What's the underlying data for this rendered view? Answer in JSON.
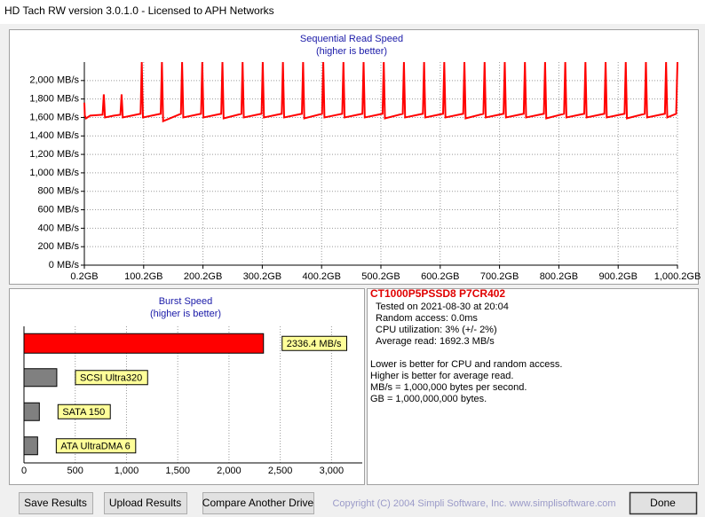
{
  "window_title": "HD Tach RW version 3.0.1.0 - Licensed to APH Networks",
  "chart_data": [
    {
      "type": "line",
      "title": "Sequential Read Speed",
      "subtitle": "(higher is better)",
      "x": [
        0.2,
        1,
        3,
        10,
        31,
        33,
        35,
        50,
        61,
        63,
        65,
        80,
        95,
        97,
        99,
        129,
        131,
        133,
        163,
        165,
        167,
        197,
        199,
        201,
        231,
        233,
        235,
        265,
        267,
        269,
        299,
        301,
        303,
        333,
        335,
        337,
        367,
        369,
        371,
        401,
        403,
        405,
        435,
        437,
        439,
        469,
        471,
        473,
        503,
        505,
        507,
        537,
        539,
        541,
        571,
        573,
        575,
        605,
        607,
        609,
        639,
        641,
        643,
        673,
        675,
        677,
        707,
        709,
        711,
        741,
        743,
        745,
        775,
        777,
        779,
        809,
        811,
        813,
        843,
        845,
        847,
        877,
        879,
        881,
        911,
        913,
        915,
        945,
        947,
        949,
        979,
        981,
        983,
        998,
        1000.2
      ],
      "series": [
        {
          "color": "#ff0000",
          "values": [
            1760,
            1620,
            1590,
            1620,
            1630,
            1850,
            1600,
            1620,
            1630,
            1850,
            1600,
            1620,
            1640,
            2200,
            1600,
            1640,
            2200,
            1560,
            1640,
            2200,
            1600,
            1640,
            2200,
            1600,
            1640,
            2200,
            1590,
            1640,
            2200,
            1600,
            1640,
            2200,
            1600,
            1640,
            2200,
            1600,
            1640,
            2200,
            1590,
            1640,
            2200,
            1600,
            1640,
            2200,
            1600,
            1640,
            2200,
            1600,
            1640,
            2200,
            1590,
            1640,
            2200,
            1600,
            1640,
            2200,
            1600,
            1640,
            2200,
            1600,
            1640,
            2200,
            1590,
            1640,
            2200,
            1600,
            1640,
            2200,
            1600,
            1640,
            2200,
            1600,
            1640,
            2200,
            1590,
            1640,
            2200,
            1600,
            1640,
            2200,
            1600,
            1640,
            2200,
            1600,
            1640,
            2200,
            1590,
            1640,
            2200,
            1600,
            1640,
            2200,
            1600,
            1640,
            2200
          ]
        }
      ],
      "xlim": [
        0.2,
        1000.2
      ],
      "xticks": [
        {
          "value": 0.2,
          "label": "0.2GB"
        },
        {
          "value": 100.2,
          "label": "100.2GB"
        },
        {
          "value": 200.2,
          "label": "200.2GB"
        },
        {
          "value": 300.2,
          "label": "300.2GB"
        },
        {
          "value": 400.2,
          "label": "400.2GB"
        },
        {
          "value": 500.2,
          "label": "500.2GB"
        },
        {
          "value": 600.2,
          "label": "600.2GB"
        },
        {
          "value": 700.2,
          "label": "700.2GB"
        },
        {
          "value": 800.2,
          "label": "800.2GB"
        },
        {
          "value": 900.2,
          "label": "900.2GB"
        },
        {
          "value": 1000.2,
          "label": "1,000.2GB"
        }
      ],
      "ylim": [
        0,
        2200
      ],
      "yticks": [
        {
          "value": 0,
          "label": "0 MB/s"
        },
        {
          "value": 200,
          "label": "200 MB/s"
        },
        {
          "value": 400,
          "label": "400 MB/s"
        },
        {
          "value": 600,
          "label": "600 MB/s"
        },
        {
          "value": 800,
          "label": "800 MB/s"
        },
        {
          "value": 1000,
          "label": "1,000 MB/s"
        },
        {
          "value": 1200,
          "label": "1,200 MB/s"
        },
        {
          "value": 1400,
          "label": "1,400 MB/s"
        },
        {
          "value": 1600,
          "label": "1,600 MB/s"
        },
        {
          "value": 1800,
          "label": "1,800 MB/s"
        },
        {
          "value": 2000,
          "label": "2,000 MB/s"
        }
      ],
      "grid": true
    },
    {
      "type": "hbar",
      "title": "Burst Speed",
      "subtitle": "(higher is better)",
      "categories": [
        null,
        "SCSI Ultra320",
        "SATA 150",
        "ATA UltraDMA 6"
      ],
      "values": [
        2336.4,
        320,
        150,
        133
      ],
      "value_labels": [
        "2336.4 MB/s",
        null,
        null,
        null
      ],
      "colors": [
        "#ff0000",
        "#808080",
        "#808080",
        "#808080"
      ],
      "xlim": [
        0,
        3300
      ],
      "xticks": [
        0,
        500,
        {
          "value": 1000,
          "label": "1,000"
        },
        {
          "value": 1500,
          "label": "1,500"
        },
        {
          "value": 2000,
          "label": "2,000"
        },
        {
          "value": 2500,
          "label": "2,500"
        },
        {
          "value": 3000,
          "label": "3,000"
        }
      ],
      "grid": true
    }
  ],
  "drive_info": {
    "name": "CT1000P5PSSD8 P7CR402",
    "details": [
      "Tested on 2021-08-30 at 20:04",
      "Random access: 0.0ms",
      "CPU utilization: 3% (+/- 2%)",
      "Average read: 1692.3 MB/s"
    ],
    "notes": [
      "Lower is better for CPU and random access.",
      "Higher is better for average read.",
      "MB/s = 1,000,000 bytes per second.",
      "GB = 1,000,000,000 bytes."
    ]
  },
  "copyright": "Copyright (C) 2004 Simpli Software, Inc. www.simplisoftware.com",
  "buttons": [
    "Save Results",
    "Upload Results",
    "Compare Another Drive",
    "Done"
  ]
}
